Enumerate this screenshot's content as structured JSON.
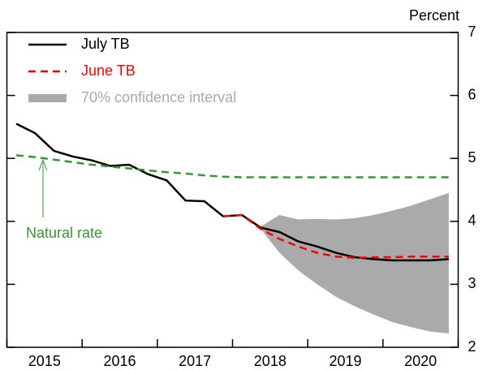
{
  "chart_data": {
    "type": "line",
    "y_label": "Percent",
    "categories": [
      "2015",
      null,
      null,
      null,
      "2016",
      null,
      null,
      null,
      "2017",
      null,
      null,
      null,
      "2018",
      null,
      null,
      null,
      "2019",
      null,
      null,
      null,
      "2020",
      null,
      null,
      null
    ],
    "ylim": [
      2,
      7
    ],
    "yticks": [
      2,
      3,
      4,
      5,
      6,
      7
    ],
    "series": [
      {
        "name": "July TB",
        "color": "#000000",
        "dash": false,
        "values": [
          5.55,
          5.4,
          5.12,
          5.03,
          4.97,
          4.88,
          4.9,
          4.75,
          4.65,
          4.33,
          4.32,
          4.08,
          4.1,
          3.9,
          3.83,
          3.68,
          3.6,
          3.5,
          3.43,
          3.4,
          3.38,
          3.38,
          3.38,
          3.4
        ]
      },
      {
        "name": "June TB",
        "color": "#ff0000",
        "dash": true,
        "values": [
          null,
          null,
          null,
          null,
          null,
          null,
          null,
          null,
          null,
          null,
          null,
          4.08,
          4.1,
          3.88,
          3.72,
          3.6,
          3.5,
          3.44,
          3.42,
          3.43,
          3.43,
          3.44,
          3.44,
          3.44
        ]
      },
      {
        "name": "70% confidence interval",
        "color": "#aaaaaa",
        "band": true,
        "upper": [
          null,
          null,
          null,
          null,
          null,
          null,
          null,
          null,
          null,
          null,
          null,
          null,
          null,
          3.92,
          4.1,
          4.03,
          4.04,
          4.03,
          4.05,
          4.1,
          4.17,
          4.25,
          4.35,
          4.45
        ],
        "lower": [
          null,
          null,
          null,
          null,
          null,
          null,
          null,
          null,
          null,
          null,
          null,
          null,
          null,
          3.88,
          3.5,
          3.22,
          3.0,
          2.8,
          2.65,
          2.52,
          2.4,
          2.32,
          2.25,
          2.22
        ]
      },
      {
        "name": "Natural rate",
        "color": "#339933",
        "dash": true,
        "legend": false,
        "values": [
          5.05,
          5.02,
          4.98,
          4.94,
          4.9,
          4.87,
          4.84,
          4.81,
          4.78,
          4.76,
          4.73,
          4.71,
          4.7,
          4.7,
          4.7,
          4.7,
          4.7,
          4.7,
          4.7,
          4.7,
          4.7,
          4.7,
          4.7,
          4.7
        ]
      }
    ]
  }
}
